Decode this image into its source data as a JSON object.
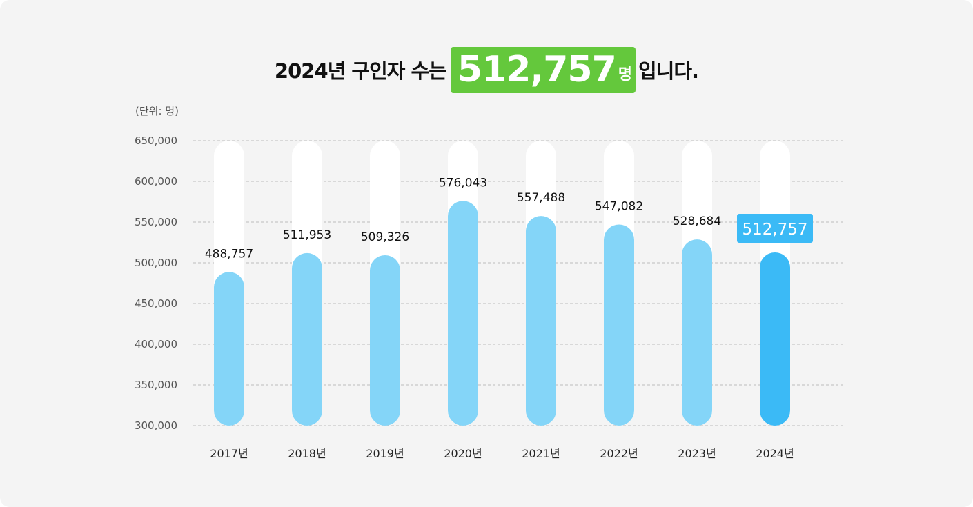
{
  "headline": {
    "prefix": "2024년 구인자 수는",
    "value": "512,757",
    "unit": "명",
    "suffix": "입니다."
  },
  "unit_note": "(단위: 명)",
  "colors": {
    "background": "#f4f4f4",
    "bar_track": "#ffffff",
    "bar": "#84d5f8",
    "bar_highlight": "#3bbaf6",
    "headline_highlight": "#64c83c",
    "grid": "#bbbbbb"
  },
  "chart_data": {
    "type": "bar",
    "title": "",
    "xlabel": "",
    "ylabel": "",
    "categories": [
      "2017년",
      "2018년",
      "2019년",
      "2020년",
      "2021년",
      "2022년",
      "2023년",
      "2024년"
    ],
    "values": [
      488757,
      511953,
      509326,
      576043,
      557488,
      547082,
      528684,
      512757
    ],
    "value_labels": [
      "488,757",
      "511,953",
      "509,326",
      "576,043",
      "557,488",
      "547,082",
      "528,684",
      "512,757"
    ],
    "ylim": [
      300000,
      650000
    ],
    "yticks": [
      300000,
      350000,
      400000,
      450000,
      500000,
      550000,
      600000,
      650000
    ],
    "ytick_labels": [
      "300,000",
      "350,000",
      "400,000",
      "450,000",
      "500,000",
      "550,000",
      "600,000",
      "650,000"
    ],
    "highlight_index": 7,
    "grid": true,
    "grid_style": "dashed",
    "legend": "none"
  }
}
